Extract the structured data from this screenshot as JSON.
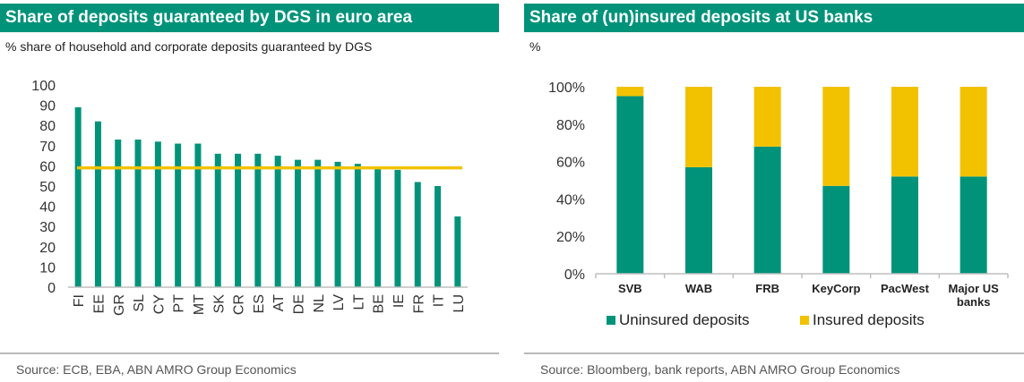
{
  "left": {
    "title": "Share of deposits guaranteed by DGS in euro area",
    "subtitle": "% share of household and corporate deposits guaranteed by DGS",
    "source": "Source: ECB, EBA, ABN AMRO Group Economics"
  },
  "right": {
    "title": "Share of (un)insured deposits at US banks",
    "subtitle": "%",
    "source": "Source: Bloomberg, bank reports, ABN AMRO Group Economics"
  },
  "colors": {
    "teal": "#00937a",
    "gold": "#f2c200",
    "axis": "#bfbfbf"
  },
  "chart_data": [
    {
      "type": "bar",
      "title": "Share of deposits guaranteed by DGS in euro area",
      "ylabel": "% share of household and corporate deposits guaranteed by DGS",
      "categories": [
        "FI",
        "EE",
        "GR",
        "SL",
        "CY",
        "PT",
        "MT",
        "SK",
        "CR",
        "ES",
        "AT",
        "DE",
        "NL",
        "LV",
        "LT",
        "BE",
        "IE",
        "FR",
        "IT",
        "LU"
      ],
      "values": [
        89,
        82,
        73,
        73,
        72,
        71,
        71,
        66,
        66,
        66,
        65,
        63,
        63,
        62,
        61,
        59,
        58,
        52,
        50,
        35
      ],
      "reference_line": 59,
      "ylim": [
        0,
        100
      ],
      "yticks": [
        "0",
        "10",
        "20",
        "30",
        "40",
        "50",
        "60",
        "70",
        "80",
        "90",
        "100"
      ],
      "grid": false
    },
    {
      "type": "bar",
      "stacked": true,
      "title": "Share of (un)insured deposits at US banks",
      "ylabel": "%",
      "categories": [
        "SVB",
        "WAB",
        "FRB",
        "KeyCorp",
        "PacWest",
        "Major US banks"
      ],
      "category_lines": [
        [
          "SVB"
        ],
        [
          "WAB"
        ],
        [
          "FRB"
        ],
        [
          "KeyCorp"
        ],
        [
          "PacWest"
        ],
        [
          "Major US",
          "banks"
        ]
      ],
      "series": [
        {
          "name": "Uninsured deposits",
          "values": [
            95,
            57,
            68,
            47,
            52,
            52
          ]
        },
        {
          "name": "Insured deposits",
          "values": [
            5,
            43,
            32,
            53,
            48,
            48
          ]
        }
      ],
      "ylim": [
        0,
        100
      ],
      "yticks": [
        "0%",
        "20%",
        "40%",
        "60%",
        "80%",
        "100%"
      ],
      "legend": "bottom",
      "grid": false
    }
  ]
}
